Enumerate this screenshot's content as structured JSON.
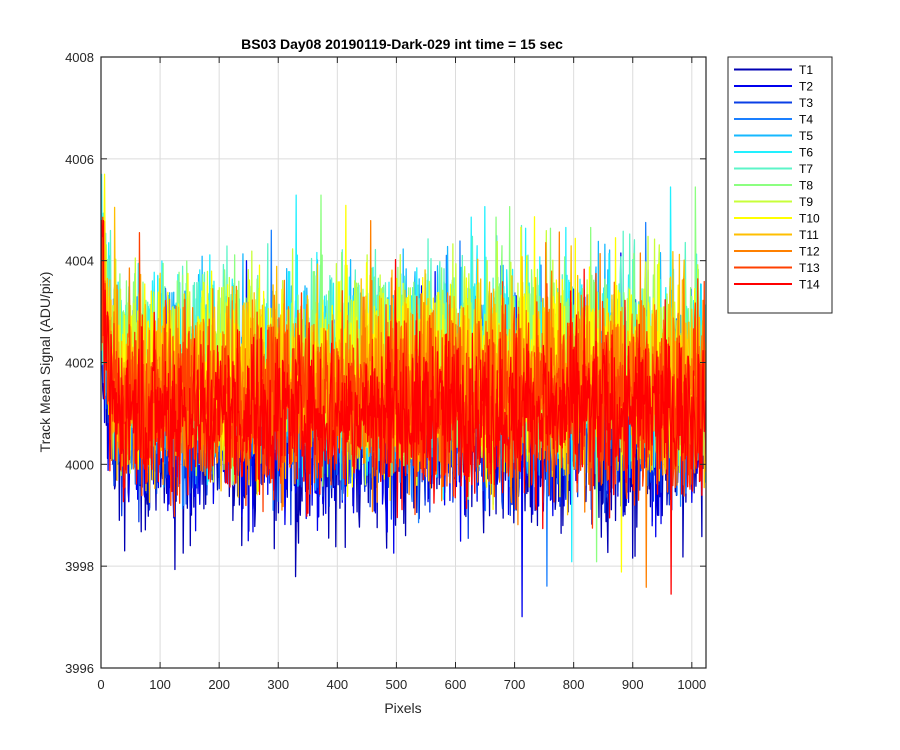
{
  "chart_data": {
    "type": "line",
    "title": "BS03 Day08 20190119-Dark-029 int time = 15 sec",
    "xlabel": "Pixels",
    "ylabel": "Track Mean Signal (ADU/pix)",
    "xlim": [
      0,
      1024
    ],
    "ylim": [
      3996,
      4008
    ],
    "xticks": [
      "0",
      "100",
      "200",
      "300",
      "400",
      "500",
      "600",
      "700",
      "800",
      "900",
      "1000"
    ],
    "yticks": [
      "3996",
      "3998",
      "4000",
      "4002",
      "4004",
      "4006",
      "4008"
    ],
    "grid": true,
    "legend_position": "outside-right",
    "points_per_series": 1024,
    "series": [
      {
        "name": "T1",
        "color": "#0000b3",
        "mean": 4000.5,
        "spread": 0.95
      },
      {
        "name": "T2",
        "color": "#0000ee",
        "mean": 4000.8,
        "spread": 0.9
      },
      {
        "name": "T3",
        "color": "#0a3fe6",
        "mean": 4001.0,
        "spread": 0.9
      },
      {
        "name": "T4",
        "color": "#1a7fff",
        "mean": 4001.4,
        "spread": 0.9
      },
      {
        "name": "T5",
        "color": "#16b8ff",
        "mean": 4001.8,
        "spread": 0.95
      },
      {
        "name": "T6",
        "color": "#22f0ff",
        "mean": 4002.0,
        "spread": 0.95
      },
      {
        "name": "T7",
        "color": "#5cf5c8",
        "mean": 4002.0,
        "spread": 0.95
      },
      {
        "name": "T8",
        "color": "#8cff80",
        "mean": 4002.0,
        "spread": 0.95
      },
      {
        "name": "T9",
        "color": "#c8ff3a",
        "mean": 4001.9,
        "spread": 0.95
      },
      {
        "name": "T10",
        "color": "#ffff00",
        "mean": 4001.8,
        "spread": 0.95
      },
      {
        "name": "T11",
        "color": "#ffbf00",
        "mean": 4001.6,
        "spread": 0.95
      },
      {
        "name": "T12",
        "color": "#ff8000",
        "mean": 4001.5,
        "spread": 0.95
      },
      {
        "name": "T13",
        "color": "#ff4000",
        "mean": 4001.2,
        "spread": 0.9
      },
      {
        "name": "T14",
        "color": "#ff0000",
        "mean": 4001.0,
        "spread": 0.8
      }
    ]
  }
}
